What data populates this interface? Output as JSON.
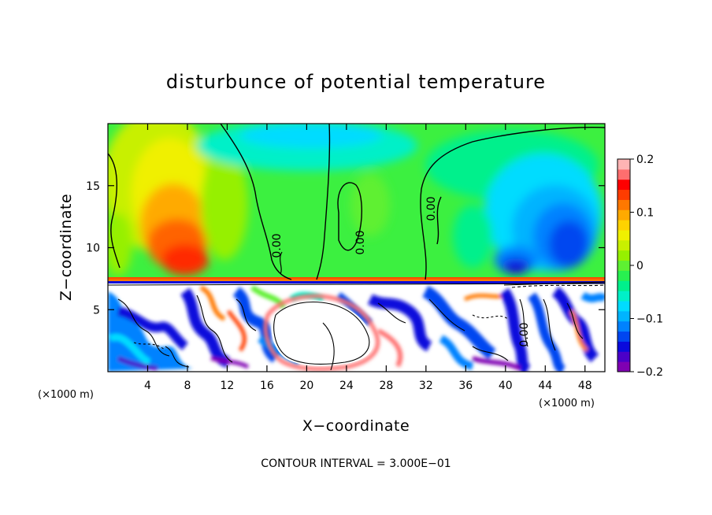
{
  "chart_data": {
    "type": "heatmap",
    "title": "disturbunce of potential temperature",
    "xlabel": "X−coordinate",
    "ylabel": "Z−coordinate",
    "x_unit_left": "(×1000 m)",
    "x_unit_right": "(×1000 m)",
    "xlim": [
      0,
      50
    ],
    "ylim": [
      0,
      20
    ],
    "xticks": [
      4,
      8,
      12,
      16,
      20,
      24,
      28,
      32,
      36,
      40,
      44,
      48
    ],
    "yticks": [
      5,
      10,
      15
    ],
    "colorbar": {
      "vmin": -0.2,
      "vmax": 0.2,
      "ticks": [
        "0.2",
        "0.1",
        "0",
        "−0.1",
        "−0.2"
      ],
      "tick_values": [
        0.2,
        0.1,
        0,
        -0.1,
        -0.2
      ],
      "colors": [
        "#7f00b2",
        "#4b00c8",
        "#0a0adc",
        "#0046f0",
        "#0082ff",
        "#00b4ff",
        "#00dcff",
        "#00f0c8",
        "#00f08c",
        "#28f050",
        "#5ef032",
        "#96f000",
        "#c8f000",
        "#f0f000",
        "#ffd200",
        "#ffaa00",
        "#ff7800",
        "#ff3c00",
        "#ff0000",
        "#ff6e6e",
        "#ffb4b4"
      ]
    },
    "contour_label": "0.00",
    "note": "CONTOUR INTERVAL = 3.000E−01"
  }
}
